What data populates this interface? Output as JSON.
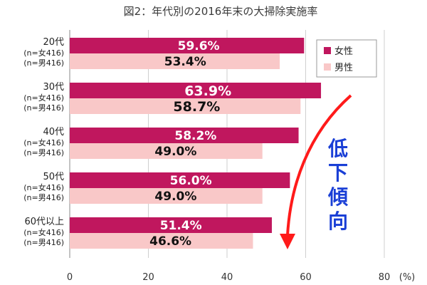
{
  "chart_data": {
    "type": "bar",
    "orientation": "horizontal",
    "title": "図2：年代別の2016年末の大掃除実施率",
    "categories": [
      {
        "label": "20代",
        "sub": [
          "(n=女416)",
          "(n=男416)"
        ]
      },
      {
        "label": "30代",
        "sub": [
          "(n=女416)",
          "(n=男416)"
        ]
      },
      {
        "label": "40代",
        "sub": [
          "(n=女416)",
          "(n=男416)"
        ]
      },
      {
        "label": "50代",
        "sub": [
          "(n=女416)",
          "(n=男416)"
        ]
      },
      {
        "label": "60代以上",
        "sub": [
          "(n=女416)",
          "(n=男416)"
        ]
      }
    ],
    "series": [
      {
        "name": "女性",
        "color": "#c0175e",
        "values": [
          59.6,
          63.9,
          58.2,
          56.0,
          51.4
        ],
        "value_labels": [
          "59.6%",
          "63.9%",
          "58.2%",
          "56.0%",
          "51.4%"
        ]
      },
      {
        "name": "男性",
        "color": "#f9c8c8",
        "values": [
          53.4,
          58.7,
          49.0,
          49.0,
          46.6
        ],
        "value_labels": [
          "53.4%",
          "58.7%",
          "49.0%",
          "49.0%",
          "46.6%"
        ]
      }
    ],
    "xlim": [
      0,
      80
    ],
    "xticks": [
      0,
      20,
      40,
      60,
      80
    ],
    "x_unit": "(%)",
    "grid": "vertical",
    "legend_position": "top-right",
    "annotation": {
      "text": "低下傾向",
      "text_color": "#1a3fd6",
      "arrow_color": "#ff1a1a"
    }
  }
}
